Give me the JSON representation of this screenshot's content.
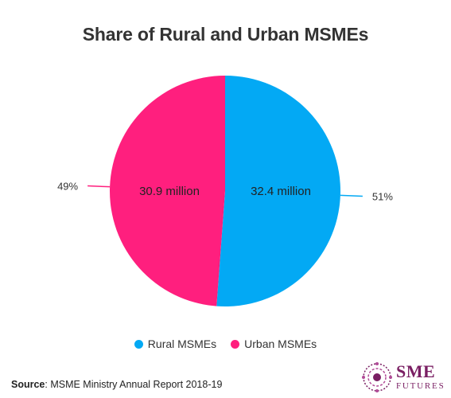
{
  "chart_data": {
    "type": "pie",
    "title": "Share of Rural and Urban MSMEs",
    "slices": [
      {
        "name": "Rural MSMEs",
        "value": 32.4,
        "data_label": "32.4 million",
        "percent_label": "51%",
        "color": "#03a9f4"
      },
      {
        "name": "Urban MSMEs",
        "value": 30.9,
        "data_label": "30.9 million",
        "percent_label": "49%",
        "color": "#ff1f7e"
      }
    ],
    "legend_position": "bottom",
    "start_angle_deg": 0,
    "direction": "clockwise"
  },
  "source": {
    "label": "Source",
    "text": ": MSME Ministry Annual Report 2018-19"
  },
  "brand": {
    "top": "SME",
    "bottom": "FUTURES",
    "color": "#7a1f63"
  }
}
